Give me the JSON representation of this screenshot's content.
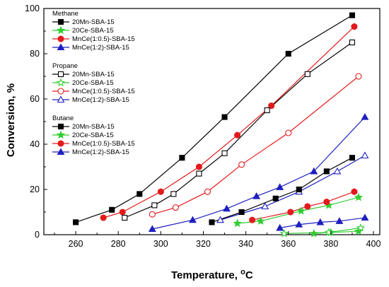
{
  "chart_data": {
    "type": "line",
    "xlabel": "Temperature, ",
    "xlabel_unit": "oC",
    "ylabel": "Conversion, %",
    "xlim": [
      245,
      403
    ],
    "ylim": [
      0,
      100
    ],
    "xticks": [
      260,
      280,
      300,
      320,
      340,
      360,
      380,
      400
    ],
    "yticks": [
      0,
      20,
      40,
      60,
      80,
      100
    ],
    "legend_placement": "top-left",
    "colors": {
      "20Mn-SBA-15": "#000000",
      "20Ce-SBA-15": "#33cc33",
      "MnCe(1:0.5)-SBA-15": "#e31a1c",
      "MnCe(1:2)-SBA-15": "#1f1fbf"
    },
    "groups": [
      {
        "name": "Methane",
        "fill": "filled",
        "series": [
          {
            "name": "20Mn-SBA-15",
            "marker": "square",
            "x": [
              260,
              277,
              290,
              310,
              330,
              360,
              390
            ],
            "y": [
              5.5,
              11,
              18,
              34,
              52,
              80,
              97
            ]
          },
          {
            "name": "20Ce-SBA-15",
            "marker": "star",
            "x": [
              372,
              380,
              393
            ],
            "y": [
              0.5,
              1,
              1.5
            ]
          },
          {
            "name": "MnCe(1:0.5)-SBA-15",
            "marker": "circle",
            "x": [
              273,
              282,
              300,
              318,
              336,
              352,
              391
            ],
            "y": [
              7.5,
              10,
              19,
              30,
              44,
              57,
              92
            ]
          },
          {
            "name": "MnCe(1:2)-SBA-15",
            "marker": "triangle",
            "x": [
              356,
              365,
              375,
              384,
              396
            ],
            "y": [
              3,
              4.5,
              5.5,
              6,
              7.5
            ]
          }
        ]
      },
      {
        "name": "Propane",
        "fill": "open",
        "series": [
          {
            "name": "20Mn-SBA-15",
            "marker": "square",
            "x": [
              283,
              297,
              306,
              318,
              330,
              350,
              369,
              390
            ],
            "y": [
              7.5,
              13,
              18,
              27,
              36,
              55,
              71,
              85
            ]
          },
          {
            "name": "20Ce-SBA-15",
            "marker": "star",
            "x": [
              358,
              379,
              394
            ],
            "y": [
              0.5,
              1,
              3
            ]
          },
          {
            "name": "MnCe(1:0.5)-SBA-15",
            "marker": "circle",
            "x": [
              296,
              307,
              322,
              338,
              360,
              393
            ],
            "y": [
              9,
              12,
              19,
              31,
              45,
              70
            ]
          },
          {
            "name": "MnCe(1:2)-SBA-15",
            "marker": "triangle",
            "x": [
              328,
              349,
              365,
              383,
              396
            ],
            "y": [
              6.5,
              12.5,
              19,
              28,
              35
            ]
          }
        ]
      },
      {
        "name": "Butane",
        "fill": "filled",
        "series": [
          {
            "name": "20Mn-SBA-15",
            "marker": "square",
            "x": [
              324,
              338,
              354,
              365,
              378,
              390
            ],
            "y": [
              5.5,
              10,
              16,
              20,
              28,
              34
            ]
          },
          {
            "name": "20Ce-SBA-15",
            "marker": "star",
            "x": [
              336,
              347,
              366,
              379,
              393
            ],
            "y": [
              5,
              6,
              10.5,
              13,
              16.5
            ]
          },
          {
            "name": "MnCe(1:0.5)-SBA-15",
            "marker": "circle",
            "x": [
              343,
              361,
              369,
              378,
              391
            ],
            "y": [
              6.5,
              10,
              12.5,
              14.5,
              19
            ]
          },
          {
            "name": "MnCe(1:2)-SBA-15",
            "marker": "triangle",
            "x": [
              296,
              315,
              331,
              345,
              356,
              372,
              396
            ],
            "y": [
              2.5,
              6.5,
              11.5,
              17,
              21,
              28,
              52
            ]
          }
        ]
      }
    ]
  }
}
